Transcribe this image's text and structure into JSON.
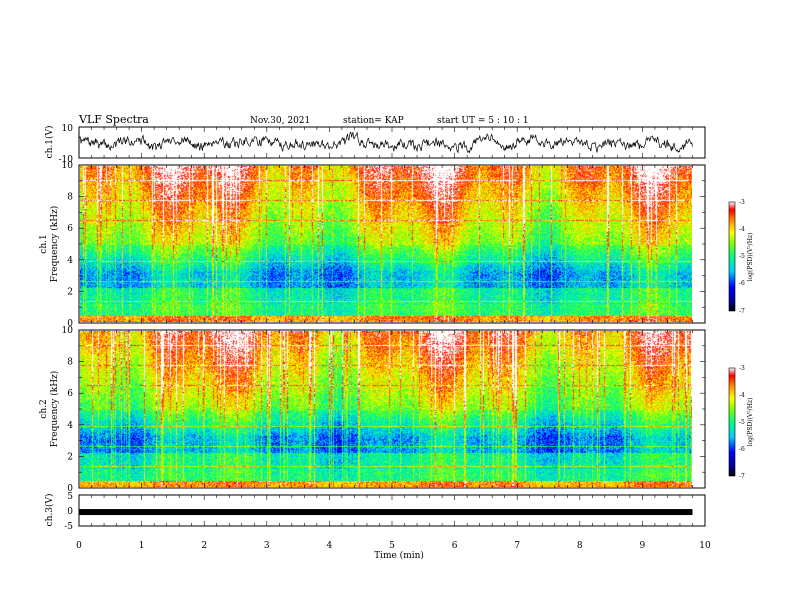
{
  "header": {
    "title": "VLF Spectra",
    "date": "Nov.30, 2021",
    "station": "station= KAP",
    "start": "start UT = 5 : 10 : 1"
  },
  "chart_data": [
    {
      "type": "line",
      "panel": "ch1-waveform",
      "ylabel": "ch.1(V)",
      "ylim": [
        -10,
        10
      ],
      "yticks": [
        "10",
        "-10"
      ],
      "xlim": [
        0,
        10
      ],
      "x_extent": 9.8,
      "description_values": {
        "mean": 0,
        "amplitude_approx": 4
      }
    },
    {
      "type": "heatmap",
      "panel": "ch1-spectrogram",
      "ylabel_line1": "ch.1",
      "ylabel_line2": "Frequency (kHz)",
      "ylim": [
        0,
        10
      ],
      "yticks": [
        "0",
        "2",
        "4",
        "6",
        "8",
        "10"
      ],
      "xlim": [
        0,
        10
      ],
      "x_extent": 9.8,
      "colorbar": {
        "label": "log(PSD)(V²/Hz)",
        "range": [
          -7,
          -3
        ],
        "ticks": [
          "-3",
          "-4",
          "-5",
          "-6",
          "-7"
        ]
      }
    },
    {
      "type": "heatmap",
      "panel": "ch2-spectrogram",
      "ylabel_line1": "ch.2",
      "ylabel_line2": "Frequency (kHz)",
      "ylim": [
        0,
        10
      ],
      "yticks": [
        "0",
        "2",
        "4",
        "6",
        "8",
        "10"
      ],
      "xlim": [
        0,
        10
      ],
      "x_extent": 9.8,
      "colorbar": {
        "label": "log(PSD)(V²/Hz)",
        "range": [
          -7,
          -3
        ],
        "ticks": [
          "-3",
          "-4",
          "-5",
          "-6",
          "-7"
        ]
      }
    },
    {
      "type": "line",
      "panel": "ch3-signal",
      "ylabel": "ch.3(V)",
      "ylim": [
        -5,
        5
      ],
      "yticks": [
        "5",
        "0",
        "-5"
      ],
      "xlim": [
        0,
        10
      ],
      "x_extent": 9.8,
      "level": -0.5
    }
  ],
  "xaxis": {
    "label": "Time (min)",
    "ticks": [
      "0",
      "1",
      "2",
      "3",
      "4",
      "5",
      "6",
      "7",
      "8",
      "9",
      "10"
    ]
  }
}
